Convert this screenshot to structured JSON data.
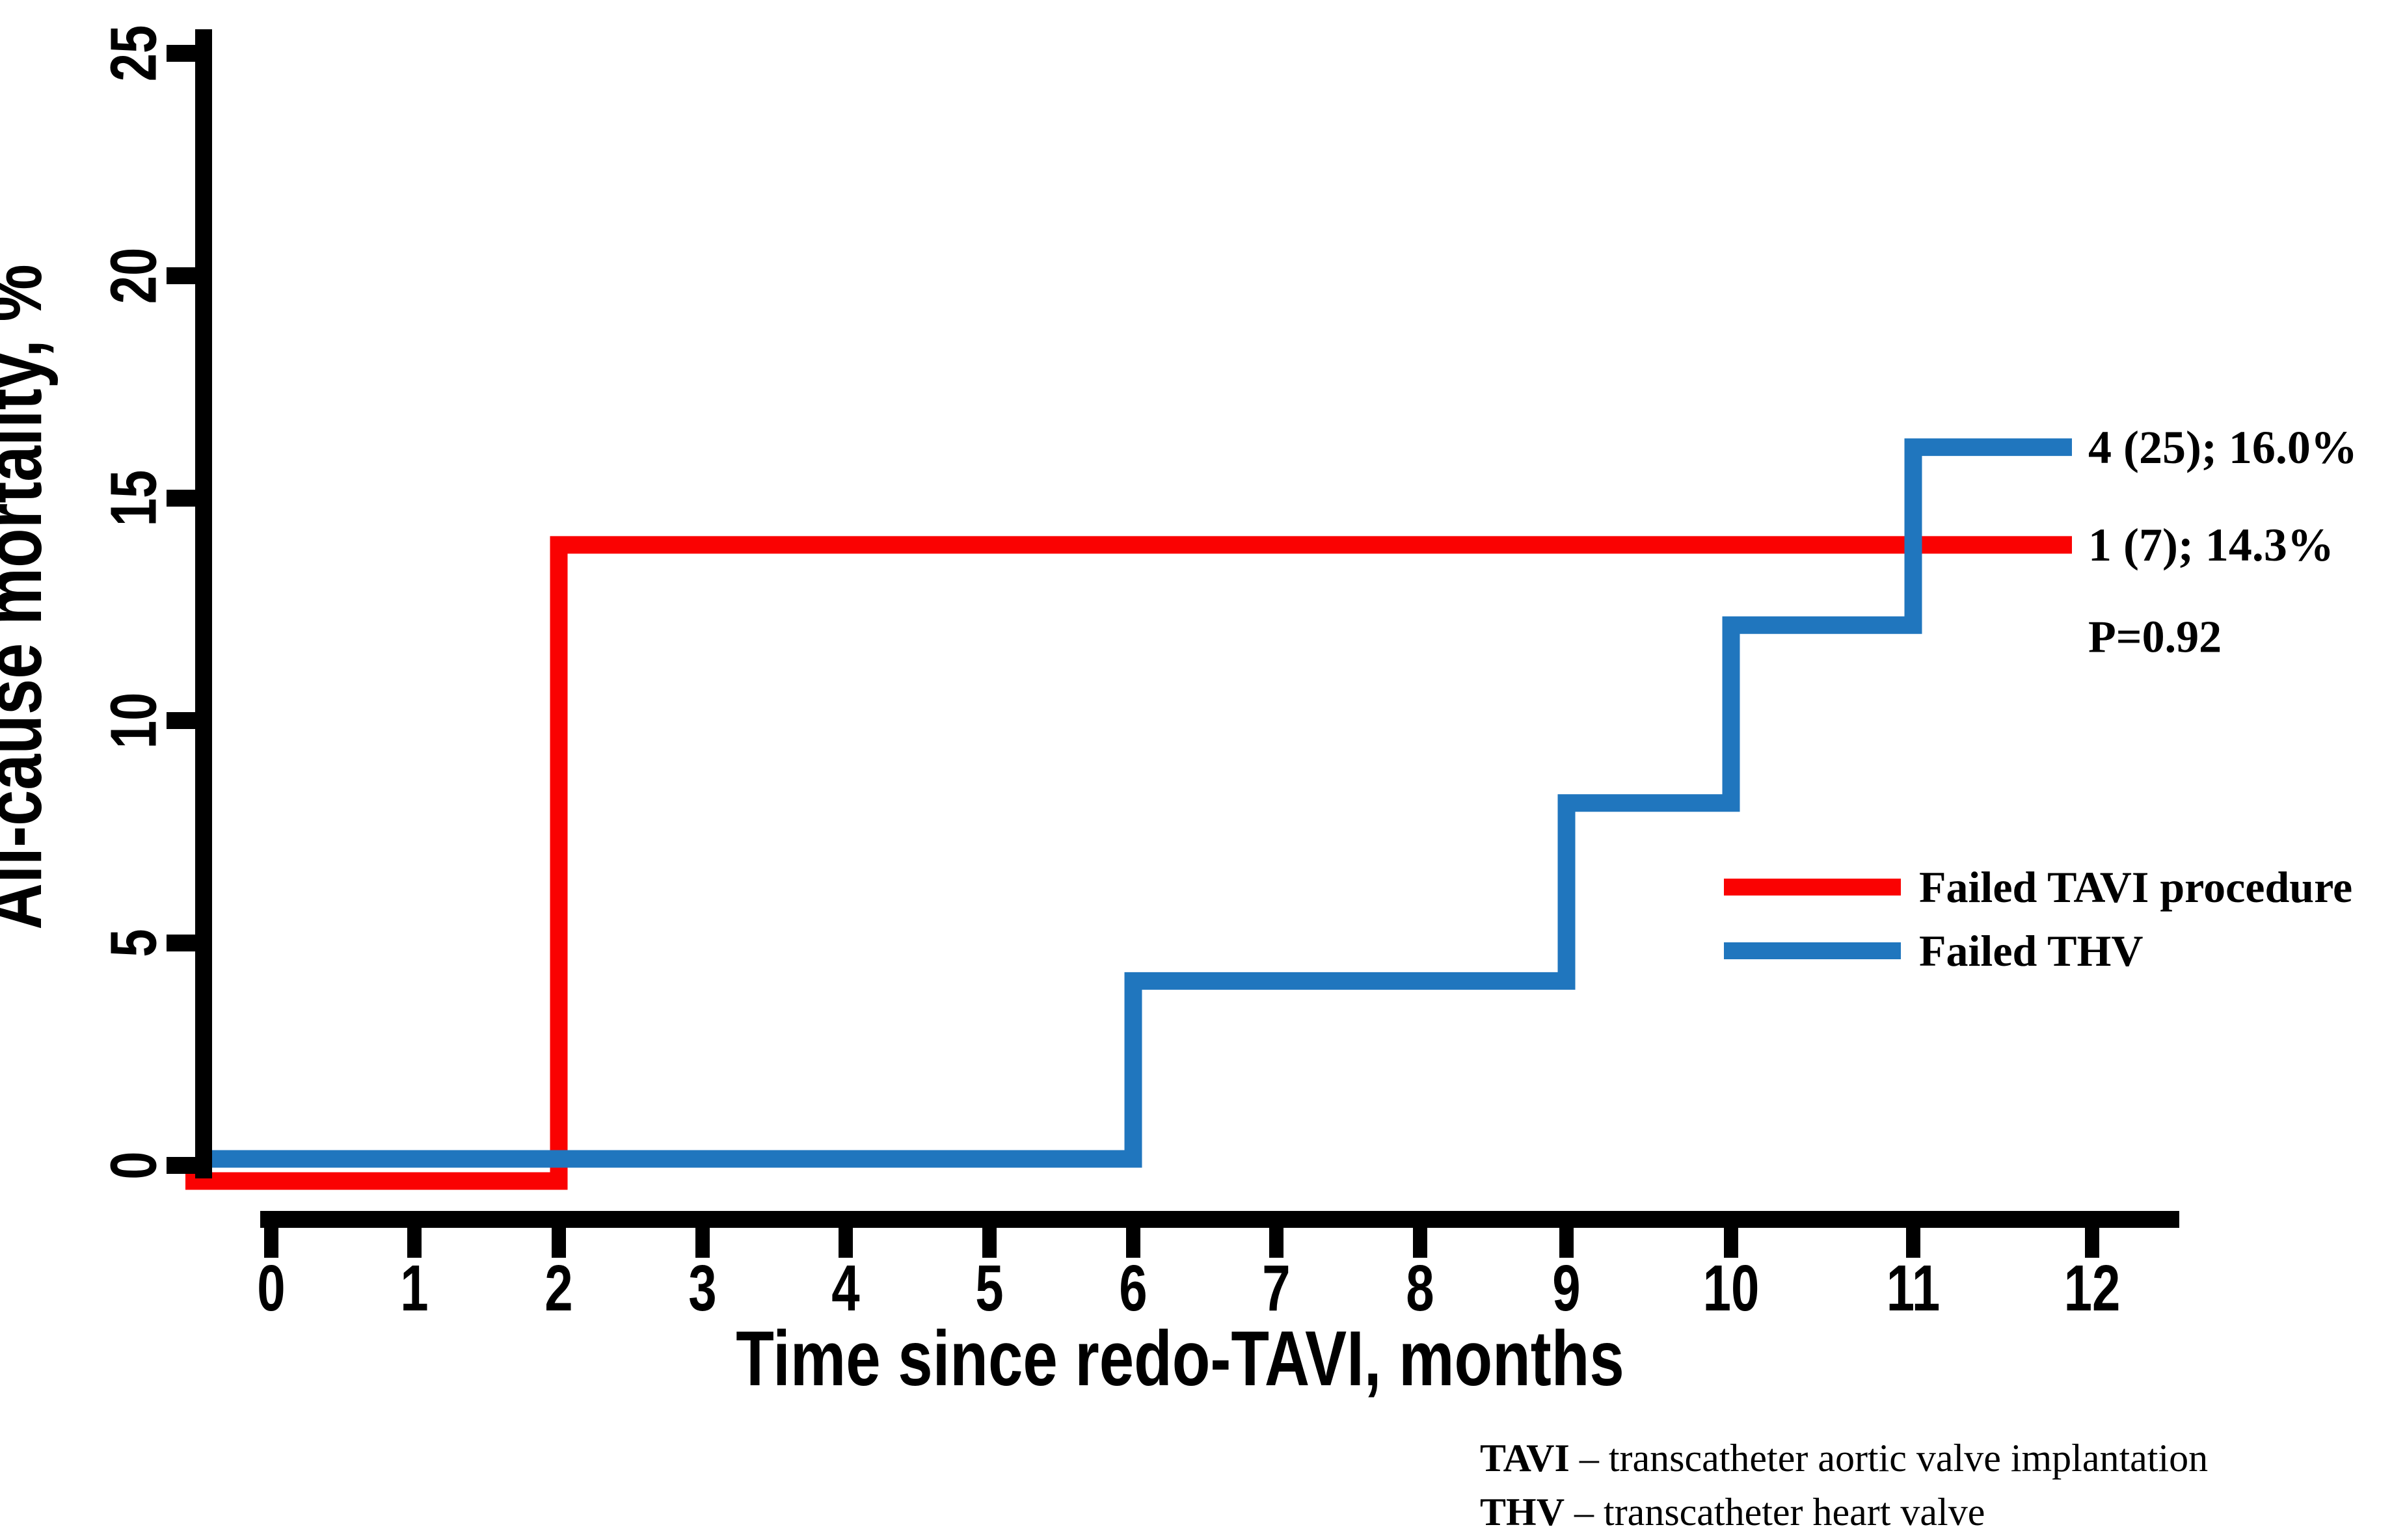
{
  "chart_data": {
    "type": "line",
    "subtype": "kaplan-meier-step",
    "title": "",
    "xlabel": "Time since redo-TAVI, months",
    "ylabel": "All-cause mortality, %",
    "x_axis": {
      "min": 0,
      "max": 12,
      "ticks": [
        0,
        1,
        2,
        3,
        4,
        5,
        6,
        7,
        8,
        9,
        10,
        11,
        12
      ]
    },
    "y_axis": {
      "min": 0,
      "max": 25,
      "ticks": [
        0,
        5,
        10,
        15,
        20,
        25
      ],
      "unit": "%"
    },
    "grid": "off",
    "legend_position": "inside-right",
    "p_value_label": "P=0.92",
    "series": [
      {
        "name": "Failed TAVI procedure",
        "color": "#FA0202",
        "events": 1,
        "n": 7,
        "final_pct": 14.3,
        "annotation": "1 (7); 14.3%",
        "steps": [
          {
            "x": 0,
            "y": 0
          },
          {
            "x": 2,
            "y": 14.3
          }
        ]
      },
      {
        "name": "Failed THV",
        "color": "#2076BE",
        "events": 4,
        "n": 25,
        "final_pct": 16.0,
        "annotation": "4 (25); 16.0%",
        "steps": [
          {
            "x": 0,
            "y": 0
          },
          {
            "x": 6,
            "y": 4
          },
          {
            "x": 9,
            "y": 8
          },
          {
            "x": 10,
            "y": 12
          },
          {
            "x": 11,
            "y": 16
          }
        ]
      }
    ]
  },
  "footnotes": [
    {
      "abbr": "TAVI",
      "text": " – transcatheter aortic valve implantation"
    },
    {
      "abbr": "THV",
      "text": " – transcatheter heart valve"
    }
  ]
}
